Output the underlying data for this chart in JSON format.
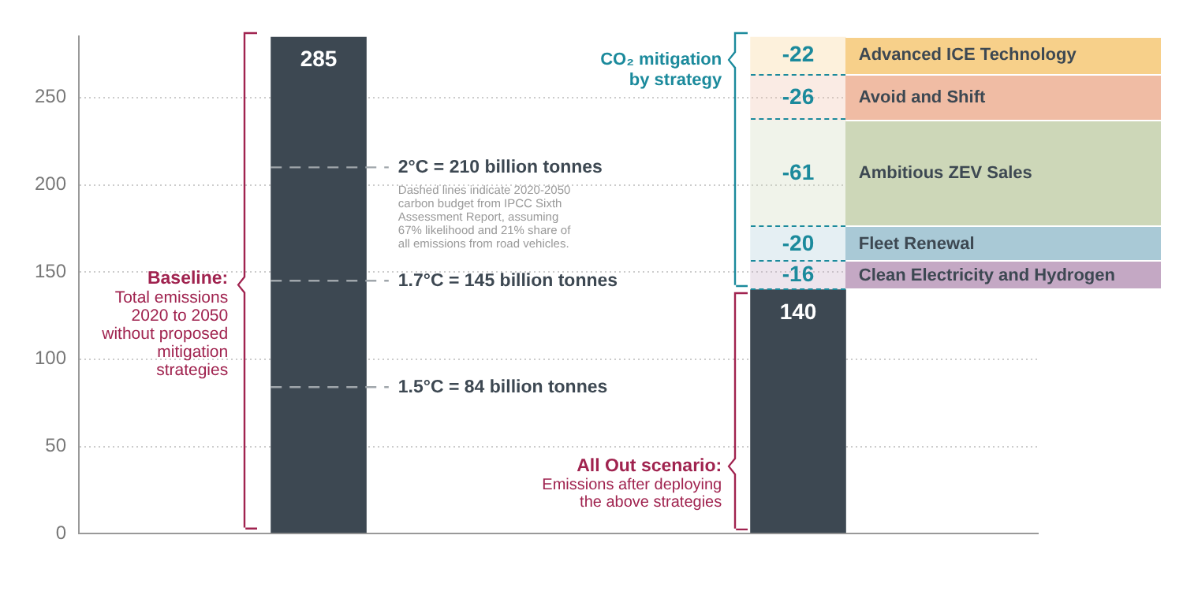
{
  "chart_data": {
    "type": "bar",
    "categories": [
      null,
      null
    ],
    "ylim": [
      0,
      285
    ],
    "yticks": [
      0,
      50,
      100,
      150,
      200,
      250
    ],
    "grid": "y",
    "legend": false,
    "data_labels": true,
    "base": [
      null,
      null
    ],
    "series": [
      {
        "color": "#3d4852",
        "values": [
          285,
          140
        ]
      },
      {
        "name": "Advanced ICE Technology",
        "color": "#f7d08a",
        "values": [
          null,
          -22
        ],
        "base": [
          null,
          285
        ]
      },
      {
        "name": "Avoid and Shift",
        "color": "#f0bca4",
        "values": [
          null,
          -26
        ],
        "base": [
          null,
          263
        ]
      },
      {
        "name": "Ambitious ZEV Sales",
        "color": "#cdd7b8",
        "values": [
          null,
          -61
        ],
        "base": [
          null,
          237
        ]
      },
      {
        "name": "Fleet Renewal",
        "color": "#a9c9d6",
        "values": [
          null,
          -20
        ],
        "base": [
          null,
          176
        ]
      },
      {
        "name": "Clean Electricity and Hydrogen",
        "color": "#c4a8c4",
        "values": [
          null,
          -16
        ],
        "base": [
          null,
          156
        ]
      }
    ],
    "ref_lines": [
      {
        "axis": "y",
        "value": 210,
        "label": "2°C = 210 billion tonnes",
        "line_style": "dashed",
        "color": "#a0a6ab"
      },
      {
        "axis": "y",
        "value": 145,
        "label": "1.7°C = 145 billion tonnes",
        "line_style": "dashed",
        "color": "#a0a6ab"
      },
      {
        "axis": "y",
        "value": 84,
        "label": "1.5°C = 84 billion tonnes",
        "line_style": "dashed",
        "color": "#a0a6ab"
      }
    ],
    "annotations": [
      "CO₂ mitigation by strategy",
      "Baseline:",
      "Total emissions 2020 to 2050 without proposed mitigation strategies",
      "All Out scenario:",
      "Emissions after deploying the above strategies",
      "Dashed lines indicate 2020-2050 carbon budget from IPCC Sixth Assessment Report, assuming 67% likelihood and 21% share of all emissions from road vehicles."
    ]
  }
}
